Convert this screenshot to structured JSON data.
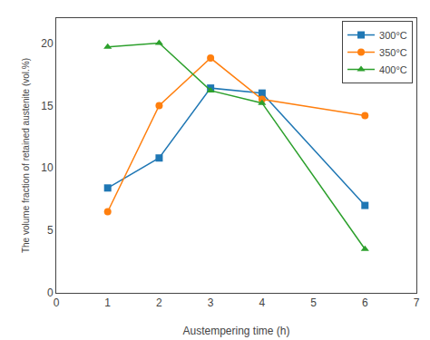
{
  "chart_data": {
    "type": "line",
    "xlabel": "Austempering time (h)",
    "ylabel": "The volume fraction of retained austenite (vol.%)",
    "x": [
      1,
      2,
      3,
      4,
      6
    ],
    "series": [
      {
        "name": "300°C",
        "values": [
          8.4,
          10.8,
          16.4,
          16.0,
          7.0
        ],
        "marker": "square",
        "line_style": "solid"
      },
      {
        "name": "350°C",
        "values": [
          6.5,
          15.0,
          18.8,
          15.5,
          14.2
        ],
        "marker": "circle",
        "line_style": "solid"
      },
      {
        "name": "400°C",
        "values": [
          19.7,
          20.0,
          16.2,
          15.2,
          3.5
        ],
        "marker": "triangle-up",
        "line_style": "solid"
      }
    ],
    "xlim": [
      0,
      7
    ],
    "ylim": [
      0,
      22
    ],
    "xticks": [
      0,
      1,
      2,
      3,
      4,
      5,
      6,
      7
    ],
    "yticks": [
      0,
      5,
      10,
      15,
      20
    ],
    "legend": "upper right",
    "grid": false
  }
}
